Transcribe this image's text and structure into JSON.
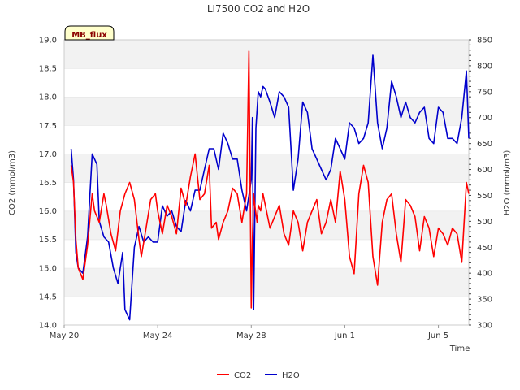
{
  "chart_data": {
    "type": "line",
    "title": "LI7500 CO2 and H2O",
    "badge": "MB_flux",
    "xlabel": "Time",
    "ylabel_left": "CO2 (mmol/m3)",
    "ylabel_right": "H2O (mmol/m3)",
    "x_range_days": [
      0,
      17.3
    ],
    "x_ticks": [
      {
        "day": 0,
        "label": "May 20"
      },
      {
        "day": 4,
        "label": "May 24"
      },
      {
        "day": 8,
        "label": "May 28"
      },
      {
        "day": 12,
        "label": "Jun 1"
      },
      {
        "day": 16,
        "label": "Jun 5"
      }
    ],
    "ylim_left": [
      14.0,
      19.0
    ],
    "yticks_left": [
      "14.0",
      "14.5",
      "15.0",
      "15.5",
      "16.0",
      "16.5",
      "17.0",
      "17.5",
      "18.0",
      "18.5",
      "19.0"
    ],
    "ylim_right": [
      300,
      850
    ],
    "yticks_right": [
      "300",
      "350",
      "400",
      "450",
      "500",
      "550",
      "600",
      "650",
      "700",
      "750",
      "800",
      "850"
    ],
    "series": [
      {
        "name": "CO2",
        "axis": "left",
        "color": "#ff0000",
        "x": [
          0.3,
          0.4,
          0.5,
          0.6,
          0.8,
          1.0,
          1.2,
          1.3,
          1.5,
          1.7,
          1.8,
          2.0,
          2.2,
          2.4,
          2.6,
          2.8,
          3.0,
          3.2,
          3.3,
          3.5,
          3.7,
          3.9,
          4.0,
          4.2,
          4.4,
          4.6,
          4.8,
          5.0,
          5.2,
          5.4,
          5.6,
          5.8,
          6.0,
          6.2,
          6.3,
          6.5,
          6.6,
          6.8,
          7.0,
          7.2,
          7.4,
          7.6,
          7.8,
          7.9,
          8.0,
          8.05,
          8.1,
          8.15,
          8.25,
          8.3,
          8.4,
          8.5,
          8.6,
          8.8,
          9.0,
          9.2,
          9.4,
          9.6,
          9.8,
          10.0,
          10.2,
          10.4,
          10.6,
          10.8,
          11.0,
          11.2,
          11.4,
          11.6,
          11.8,
          12.0,
          12.2,
          12.4,
          12.6,
          12.8,
          13.0,
          13.2,
          13.4,
          13.6,
          13.8,
          14.0,
          14.2,
          14.4,
          14.6,
          14.8,
          15.0,
          15.2,
          15.4,
          15.6,
          15.8,
          16.0,
          16.2,
          16.4,
          16.6,
          16.8,
          17.0,
          17.2,
          17.3
        ],
        "values": [
          16.8,
          16.5,
          15.5,
          15.0,
          14.8,
          15.4,
          16.3,
          16.0,
          15.8,
          16.3,
          16.1,
          15.6,
          15.3,
          16.0,
          16.3,
          16.5,
          16.2,
          15.5,
          15.2,
          15.7,
          16.2,
          16.3,
          16.0,
          15.6,
          16.1,
          15.9,
          15.6,
          16.4,
          16.1,
          16.6,
          17.0,
          16.2,
          16.3,
          16.8,
          15.7,
          15.8,
          15.5,
          15.8,
          16.0,
          16.4,
          16.3,
          15.8,
          16.3,
          18.8,
          14.3,
          15.5,
          16.3,
          16.1,
          15.8,
          16.1,
          16.0,
          16.3,
          16.1,
          15.7,
          15.9,
          16.1,
          15.6,
          15.4,
          16.0,
          15.8,
          15.3,
          15.8,
          16.0,
          16.2,
          15.6,
          15.8,
          16.2,
          15.8,
          16.7,
          16.2,
          15.2,
          14.9,
          16.3,
          16.8,
          16.5,
          15.2,
          14.7,
          15.8,
          16.2,
          16.3,
          15.6,
          15.1,
          16.2,
          16.1,
          15.9,
          15.3,
          15.9,
          15.7,
          15.2,
          15.7,
          15.6,
          15.4,
          15.7,
          15.6,
          15.1,
          16.5,
          16.3
        ]
      },
      {
        "name": "H2O",
        "axis": "right",
        "color": "#0000cc",
        "x": [
          0.3,
          0.4,
          0.5,
          0.6,
          0.8,
          1.0,
          1.2,
          1.4,
          1.5,
          1.7,
          1.9,
          2.1,
          2.3,
          2.5,
          2.6,
          2.8,
          3.0,
          3.2,
          3.4,
          3.6,
          3.8,
          4.0,
          4.2,
          4.4,
          4.6,
          4.8,
          5.0,
          5.2,
          5.4,
          5.6,
          5.8,
          6.0,
          6.2,
          6.4,
          6.6,
          6.8,
          7.0,
          7.2,
          7.4,
          7.6,
          7.8,
          8.0,
          8.05,
          8.1,
          8.2,
          8.3,
          8.4,
          8.5,
          8.6,
          8.8,
          9.0,
          9.2,
          9.4,
          9.6,
          9.8,
          10.0,
          10.2,
          10.4,
          10.6,
          10.8,
          11.0,
          11.2,
          11.4,
          11.6,
          11.8,
          12.0,
          12.2,
          12.4,
          12.6,
          12.8,
          13.0,
          13.2,
          13.4,
          13.6,
          13.8,
          14.0,
          14.2,
          14.4,
          14.6,
          14.8,
          15.0,
          15.2,
          15.4,
          15.6,
          15.8,
          16.0,
          16.2,
          16.4,
          16.6,
          16.8,
          17.0,
          17.2,
          17.3
        ],
        "values": [
          640,
          580,
          440,
          410,
          400,
          470,
          630,
          610,
          500,
          470,
          460,
          410,
          380,
          440,
          330,
          310,
          450,
          490,
          460,
          470,
          460,
          460,
          530,
          510,
          520,
          490,
          480,
          540,
          520,
          560,
          560,
          600,
          640,
          640,
          600,
          670,
          650,
          620,
          620,
          560,
          520,
          580,
          700,
          330,
          680,
          750,
          740,
          760,
          755,
          730,
          700,
          750,
          740,
          720,
          560,
          620,
          730,
          710,
          640,
          620,
          600,
          580,
          600,
          660,
          640,
          620,
          690,
          680,
          650,
          660,
          690,
          820,
          690,
          640,
          680,
          770,
          740,
          700,
          730,
          700,
          690,
          710,
          720,
          660,
          650,
          720,
          710,
          660,
          660,
          650,
          700,
          790,
          660
        ]
      }
    ]
  },
  "legend": {
    "items": [
      {
        "label": "CO2",
        "color": "#ff0000"
      },
      {
        "label": "H2O",
        "color": "#0000cc"
      }
    ]
  }
}
